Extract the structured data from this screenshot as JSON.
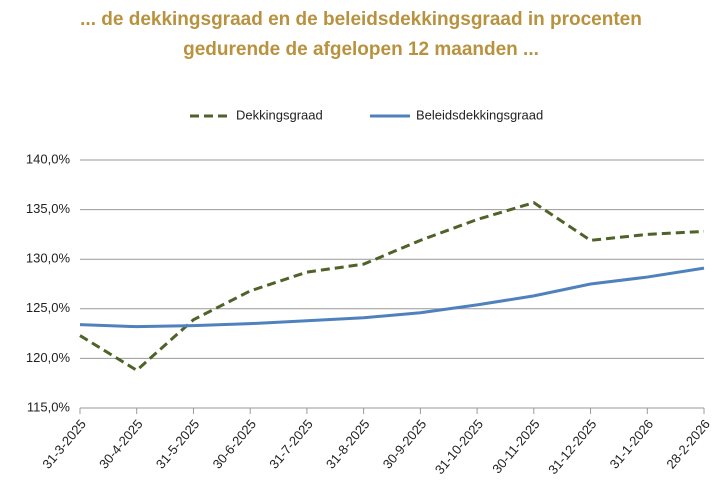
{
  "chart_data": {
    "type": "line",
    "title": [
      "... de dekkingsgraad en de beleidsdekkingsgraad in procenten",
      "gedurende de afgelopen 12 maanden ..."
    ],
    "categories": [
      "31-3-2025",
      "30-4-2025",
      "31-5-2025",
      "30-6-2025",
      "31-7-2025",
      "31-8-2025",
      "30-9-2025",
      "31-10-2025",
      "30-11-2025",
      "31-12-2025",
      "31-1-2026",
      "28-2-2026"
    ],
    "series": [
      {
        "name": "Dekkingsgraad",
        "color": "#4f6228",
        "dashed": true,
        "values": [
          122.3,
          118.8,
          123.9,
          126.8,
          128.7,
          129.5,
          131.9,
          134.0,
          135.7,
          131.9,
          132.5,
          132.8
        ]
      },
      {
        "name": "Beleidsdekkingsgraad",
        "color": "#4f81bd",
        "dashed": false,
        "values": [
          123.4,
          123.2,
          123.3,
          123.5,
          123.8,
          124.1,
          124.6,
          125.4,
          126.3,
          127.5,
          128.2,
          129.1
        ]
      }
    ],
    "ylim": [
      115,
      140
    ],
    "yticks": [
      {
        "value": 115,
        "label": "115,0%"
      },
      {
        "value": 120,
        "label": "120,0%"
      },
      {
        "value": 125,
        "label": "125,0%"
      },
      {
        "value": 130,
        "label": "130,0%"
      },
      {
        "value": 135,
        "label": "135,0%"
      },
      {
        "value": 140,
        "label": "140,0%"
      }
    ],
    "grid": true,
    "legend": "top"
  }
}
